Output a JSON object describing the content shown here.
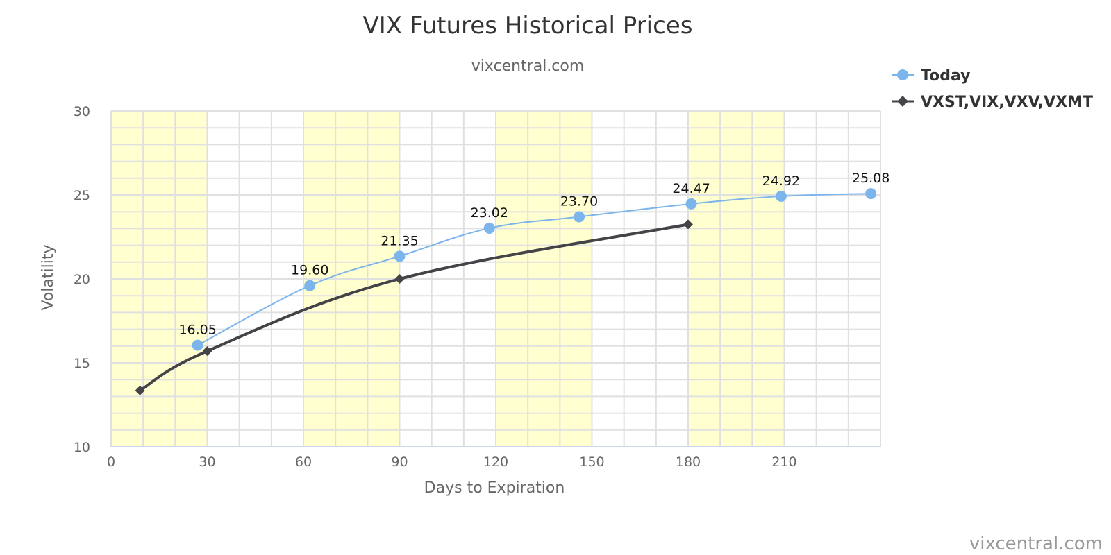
{
  "chart_data": {
    "type": "line",
    "title": "VIX Futures Historical Prices",
    "subtitle": "vixcentral.com",
    "xlabel": "Days to Expiration",
    "ylabel": "Volatility",
    "xlim": [
      0,
      240
    ],
    "ylim": [
      10,
      30
    ],
    "x_ticks": [
      "0",
      "30",
      "60",
      "90",
      "120",
      "150",
      "180",
      "210"
    ],
    "y_ticks": [
      "10",
      "15",
      "20",
      "25",
      "30"
    ],
    "grid": true,
    "shaded_bands": [
      [
        0,
        30
      ],
      [
        60,
        90
      ],
      [
        120,
        150
      ],
      [
        180,
        210
      ]
    ],
    "band_color": "#ffffd0",
    "legend_position": "top-right",
    "series": [
      {
        "name": "Today",
        "color": "#7cb5ec",
        "marker": "circle",
        "x": [
          27,
          62,
          90,
          118,
          146,
          181,
          209,
          237
        ],
        "y": [
          16.05,
          19.6,
          21.35,
          23.02,
          23.7,
          24.47,
          24.92,
          25.08
        ],
        "labels": [
          "16.05",
          "19.60",
          "21.35",
          "23.02",
          "23.70",
          "24.47",
          "24.92",
          "25.08"
        ]
      },
      {
        "name": "VXST,VIX,VXV,VXMT",
        "color": "#434348",
        "marker": "diamond",
        "x": [
          9,
          30,
          90,
          180
        ],
        "y": [
          13.35,
          15.7,
          20.0,
          23.25
        ],
        "labels": []
      }
    ]
  },
  "credit": "vixcentral.com"
}
